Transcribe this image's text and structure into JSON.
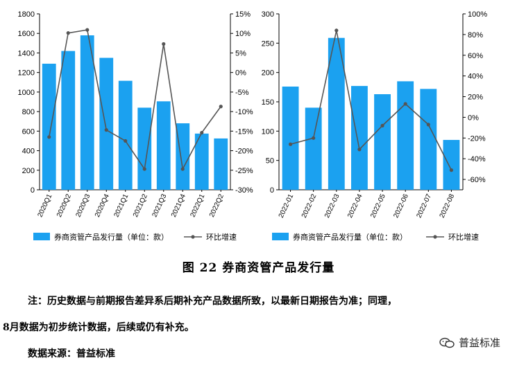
{
  "chart_data": [
    {
      "type": "bar",
      "categories": [
        "2020Q1",
        "2020Q2",
        "2020Q3",
        "2020Q4",
        "2021Q1",
        "2021Q2",
        "2021Q3",
        "2021Q4",
        "2022Q1",
        "2022Q2"
      ],
      "series": [
        {
          "name": "券商资管产品发行量（单位：款）",
          "type": "bar",
          "axis": "left",
          "values": [
            1290,
            1420,
            1580,
            1350,
            1115,
            840,
            905,
            680,
            575,
            525
          ]
        },
        {
          "name": "环比增速",
          "type": "line",
          "axis": "right",
          "values": [
            -16.5,
            10.1,
            10.9,
            -14.7,
            -17.5,
            -24.7,
            7.3,
            -24.7,
            -15.4,
            -8.7
          ]
        }
      ],
      "ylim": [
        0,
        1800
      ],
      "yticks": [
        "0",
        "200",
        "400",
        "600",
        "800",
        "1000",
        "1200",
        "1400",
        "1600",
        "1800"
      ],
      "y2lim": [
        -30,
        15
      ],
      "y2ticks": [
        "-30%",
        "-25%",
        "-20%",
        "-15%",
        "-10%",
        "-5%",
        "0%",
        "5%",
        "10%",
        "15%"
      ],
      "legend": "bottom"
    },
    {
      "type": "bar",
      "categories": [
        "2022-01",
        "2022-02",
        "2022-03",
        "2022-04",
        "2022-05",
        "2022-06",
        "2022-07",
        "2022-08"
      ],
      "series": [
        {
          "name": "券商资管产品发行量（单位：款）",
          "type": "bar",
          "axis": "left",
          "values": [
            176,
            140,
            259,
            177,
            163,
            185,
            172,
            85
          ]
        },
        {
          "name": "环比增速",
          "type": "line",
          "axis": "right",
          "values": [
            -26,
            -20,
            84,
            -31,
            -8,
            13,
            -7,
            -51
          ]
        }
      ],
      "ylim": [
        0,
        300
      ],
      "yticks": [
        "0",
        "50",
        "100",
        "150",
        "200",
        "250",
        "300"
      ],
      "y2lim": [
        -70,
        100
      ],
      "y2ticks": [
        "-60%",
        "-40%",
        "-20%",
        "0%",
        "20%",
        "40%",
        "60%",
        "80%",
        "100%"
      ],
      "legend": "bottom"
    }
  ],
  "colors": {
    "bar": "#1ba1f0",
    "line": "#555555"
  },
  "caption": "图 22   券商资管产品发行量",
  "note_line1": "注：历史数据与前期报告差异系后期补充产品数据所致，以最新日期报告为准；同理，",
  "note_line2": "8月数据为初步统计数据，后续或仍有补充。",
  "source": "数据来源：普益标准",
  "watermark": "普益标准"
}
